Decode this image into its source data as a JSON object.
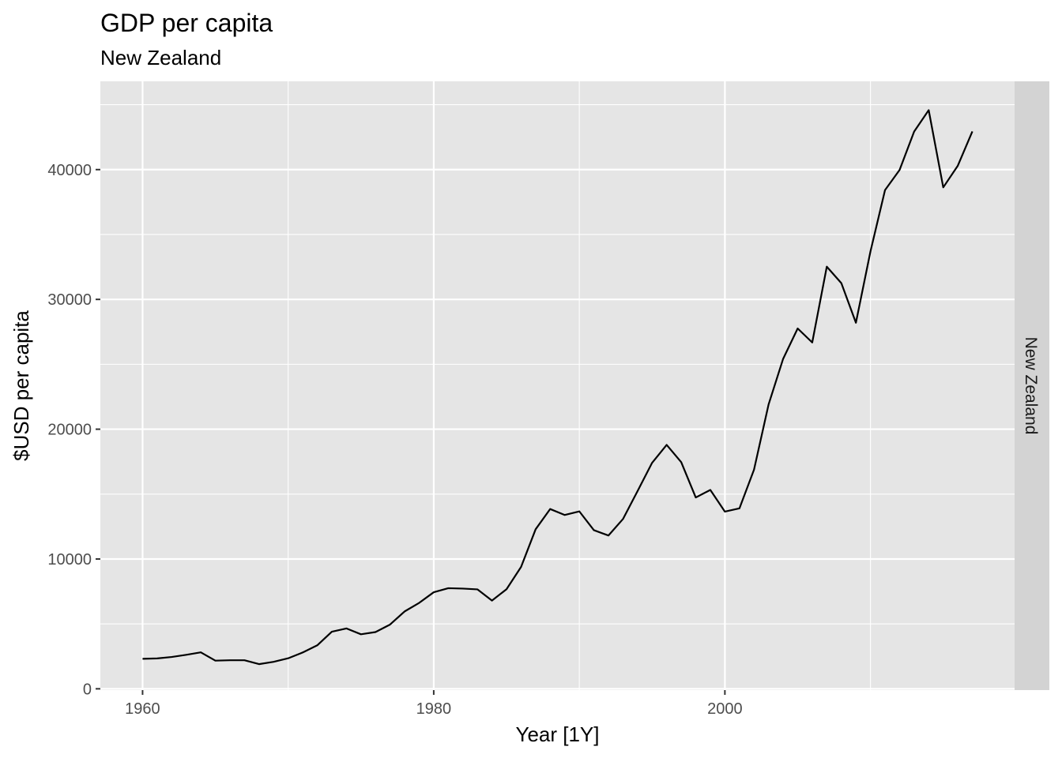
{
  "chart_data": {
    "type": "line",
    "title": "GDP per capita",
    "subtitle": "New Zealand",
    "xlabel": "Year [1Y]",
    "ylabel": "$USD per capita",
    "facet_label": "New Zealand",
    "xlim": [
      1957.1,
      2019.9
    ],
    "ylim": [
      -100,
      46800
    ],
    "x_ticks": [
      1960,
      1980,
      2000
    ],
    "x_minor_ticks": [
      1970,
      1990,
      2010
    ],
    "y_ticks": [
      0,
      10000,
      20000,
      30000,
      40000
    ],
    "y_minor_ticks": [
      5000,
      15000,
      25000,
      35000,
      45000
    ],
    "grid": true,
    "colors": {
      "panel": "#e5e5e5",
      "grid": "#ffffff",
      "line": "#000000",
      "strip": "#d3d3d3"
    },
    "series": [
      {
        "x": [
          1960,
          1961,
          1962,
          1963,
          1964,
          1965,
          1966,
          1967,
          1968,
          1969,
          1970,
          1971,
          1972,
          1973,
          1974,
          1975,
          1976,
          1977,
          1978,
          1979,
          1980,
          1981,
          1982,
          1983,
          1984,
          1985,
          1986,
          1987,
          1988,
          1989,
          1990,
          1991,
          1992,
          1993,
          1994,
          1995,
          1996,
          1997,
          1998,
          1999,
          2000,
          2001,
          2002,
          2003,
          2004,
          2005,
          2006,
          2007,
          2008,
          2009,
          2010,
          2011,
          2012,
          2013,
          2014,
          2015,
          2016,
          2017
        ],
        "y": [
          2310,
          2340,
          2450,
          2620,
          2810,
          2170,
          2200,
          2200,
          1900,
          2080,
          2350,
          2800,
          3350,
          4400,
          4650,
          4200,
          4370,
          4950,
          5960,
          6620,
          7440,
          7750,
          7720,
          7660,
          6800,
          7670,
          9390,
          12290,
          13850,
          13390,
          13670,
          12220,
          11810,
          13080,
          15230,
          17410,
          18790,
          17460,
          14740,
          15320,
          13650,
          13900,
          16880,
          21900,
          25420,
          27760,
          26680,
          32520,
          31250,
          28200,
          33700,
          38420,
          39970,
          42930,
          44580,
          38630,
          40300,
          42940
        ]
      }
    ]
  }
}
